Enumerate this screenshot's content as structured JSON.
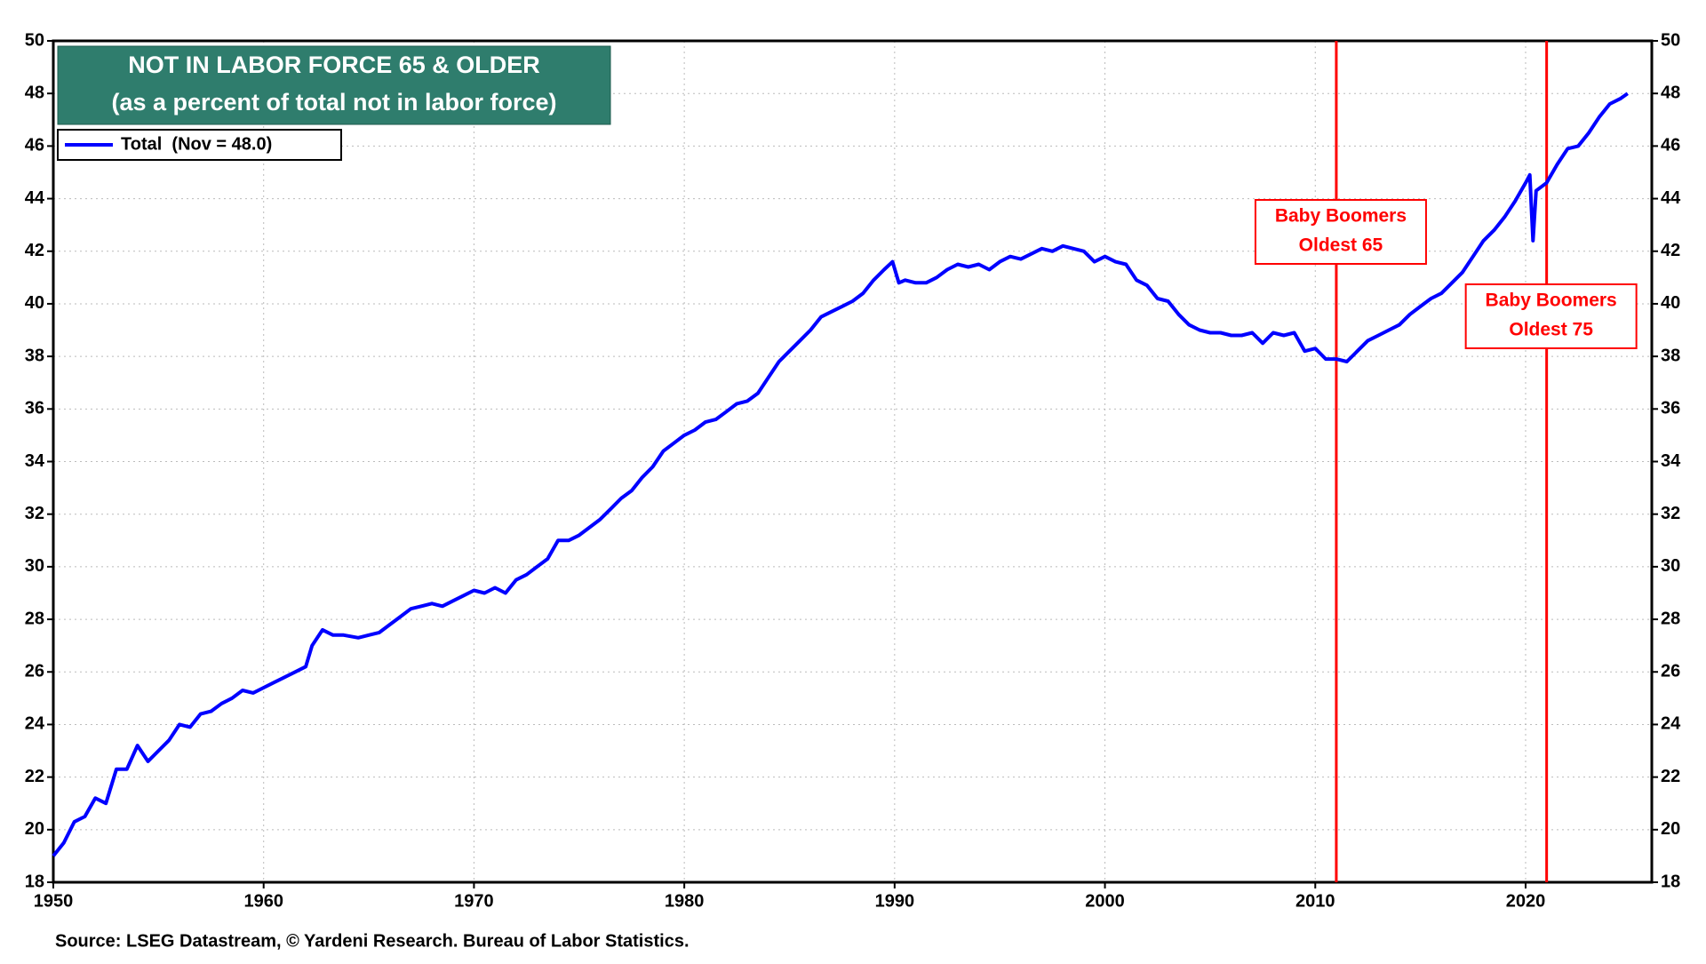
{
  "chart_data": {
    "type": "line",
    "title": "NOT IN LABOR FORCE 65 & OLDER",
    "subtitle": "(as a percent of total not in labor force)",
    "source": "Source: LSEG Datastream, © Yardeni Research. Bureau of Labor Statistics.",
    "x": [
      1950,
      1950.5,
      1951,
      1951.5,
      1952,
      1952.5,
      1953,
      1953.5,
      1954,
      1954.5,
      1955,
      1955.5,
      1956,
      1956.5,
      1957,
      1957.5,
      1958,
      1958.5,
      1959,
      1959.5,
      1960,
      1960.5,
      1961,
      1961.5,
      1962,
      1962.3,
      1962.8,
      1963.3,
      1963.8,
      1964.5,
      1965,
      1965.5,
      1966,
      1966.5,
      1967,
      1967.5,
      1968,
      1968.5,
      1969,
      1969.5,
      1970,
      1970.5,
      1971,
      1971.5,
      1972,
      1972.5,
      1973,
      1973.5,
      1974,
      1974.5,
      1975,
      1975.5,
      1976,
      1976.5,
      1977,
      1977.5,
      1978,
      1978.5,
      1979,
      1979.5,
      1980,
      1980.5,
      1981,
      1981.5,
      1982,
      1982.5,
      1983,
      1983.5,
      1984,
      1984.5,
      1985,
      1985.5,
      1986,
      1986.5,
      1987,
      1987.5,
      1988,
      1988.5,
      1989,
      1989.5,
      1989.9,
      1990.2,
      1990.5,
      1991,
      1991.5,
      1992,
      1992.5,
      1993,
      1993.5,
      1994,
      1994.5,
      1995,
      1995.5,
      1996,
      1996.5,
      1997,
      1997.5,
      1998,
      1998.5,
      1999,
      1999.5,
      2000,
      2000.5,
      2001,
      2001.5,
      2002,
      2002.5,
      2003,
      2003.5,
      2004,
      2004.5,
      2005,
      2005.5,
      2006,
      2006.5,
      2007,
      2007.5,
      2008,
      2008.5,
      2009,
      2009.5,
      2010,
      2010.5,
      2011,
      2011.5,
      2012,
      2012.5,
      2013,
      2013.5,
      2014,
      2014.5,
      2015,
      2015.5,
      2016,
      2016.5,
      2017,
      2017.5,
      2018,
      2018.5,
      2019,
      2019.5,
      2020,
      2020.2,
      2020.35,
      2020.5,
      2021,
      2021.5,
      2022,
      2022.5,
      2023,
      2023.5,
      2024,
      2024.5,
      2024.85
    ],
    "series": [
      {
        "name": "Total  (Nov = 48.0)",
        "color": "#0000ff",
        "values": [
          19.0,
          19.5,
          20.3,
          20.5,
          21.2,
          21.0,
          22.3,
          22.3,
          23.2,
          22.6,
          23.0,
          23.4,
          24.0,
          23.9,
          24.4,
          24.5,
          24.8,
          25.0,
          25.3,
          25.2,
          25.4,
          25.6,
          25.8,
          26.0,
          26.2,
          27.0,
          27.6,
          27.4,
          27.4,
          27.3,
          27.4,
          27.5,
          27.8,
          28.1,
          28.4,
          28.5,
          28.6,
          28.5,
          28.7,
          28.9,
          29.1,
          29.0,
          29.2,
          29.0,
          29.5,
          29.7,
          30.0,
          30.3,
          31.0,
          31.0,
          31.2,
          31.5,
          31.8,
          32.2,
          32.6,
          32.9,
          33.4,
          33.8,
          34.4,
          34.7,
          35.0,
          35.2,
          35.5,
          35.6,
          35.9,
          36.2,
          36.3,
          36.6,
          37.2,
          37.8,
          38.2,
          38.6,
          39.0,
          39.5,
          39.7,
          39.9,
          40.1,
          40.4,
          40.9,
          41.3,
          41.6,
          40.8,
          40.9,
          40.8,
          40.8,
          41.0,
          41.3,
          41.5,
          41.4,
          41.5,
          41.3,
          41.6,
          41.8,
          41.7,
          41.9,
          42.1,
          42.0,
          42.2,
          42.1,
          42.0,
          41.6,
          41.8,
          41.6,
          41.5,
          40.9,
          40.7,
          40.2,
          40.1,
          39.6,
          39.2,
          39.0,
          38.9,
          38.9,
          38.8,
          38.8,
          38.9,
          38.5,
          38.9,
          38.8,
          38.9,
          38.2,
          38.3,
          37.9,
          37.9,
          37.8,
          38.2,
          38.6,
          38.8,
          39.0,
          39.2,
          39.6,
          39.9,
          40.2,
          40.4,
          40.8,
          41.2,
          41.8,
          42.4,
          42.8,
          43.3,
          43.9,
          44.6,
          44.9,
          42.4,
          44.3,
          44.6,
          45.3,
          45.9,
          46.0,
          46.5,
          47.1,
          47.6,
          47.8,
          48.0
        ]
      }
    ],
    "xlim": [
      1950,
      2026
    ],
    "xticks": [
      1950,
      1960,
      1970,
      1980,
      1990,
      2000,
      2010,
      2020
    ],
    "ylim": [
      18,
      50
    ],
    "yticks": [
      18,
      20,
      22,
      24,
      26,
      28,
      30,
      32,
      34,
      36,
      38,
      40,
      42,
      44,
      46,
      48,
      50
    ],
    "y2lim": [
      18,
      50
    ],
    "y2ticks": [
      18,
      20,
      22,
      24,
      26,
      28,
      30,
      32,
      34,
      36,
      38,
      40,
      42,
      44,
      46,
      48,
      50
    ],
    "grid": true,
    "legend": "upper left",
    "annotations": [
      {
        "x": 2011,
        "lines": [
          "Baby Boomers",
          "Oldest 65"
        ],
        "color": "#ff0000"
      },
      {
        "x": 2021,
        "lines": [
          "Baby Boomers",
          "Oldest 75"
        ],
        "color": "#ff0000"
      }
    ]
  }
}
